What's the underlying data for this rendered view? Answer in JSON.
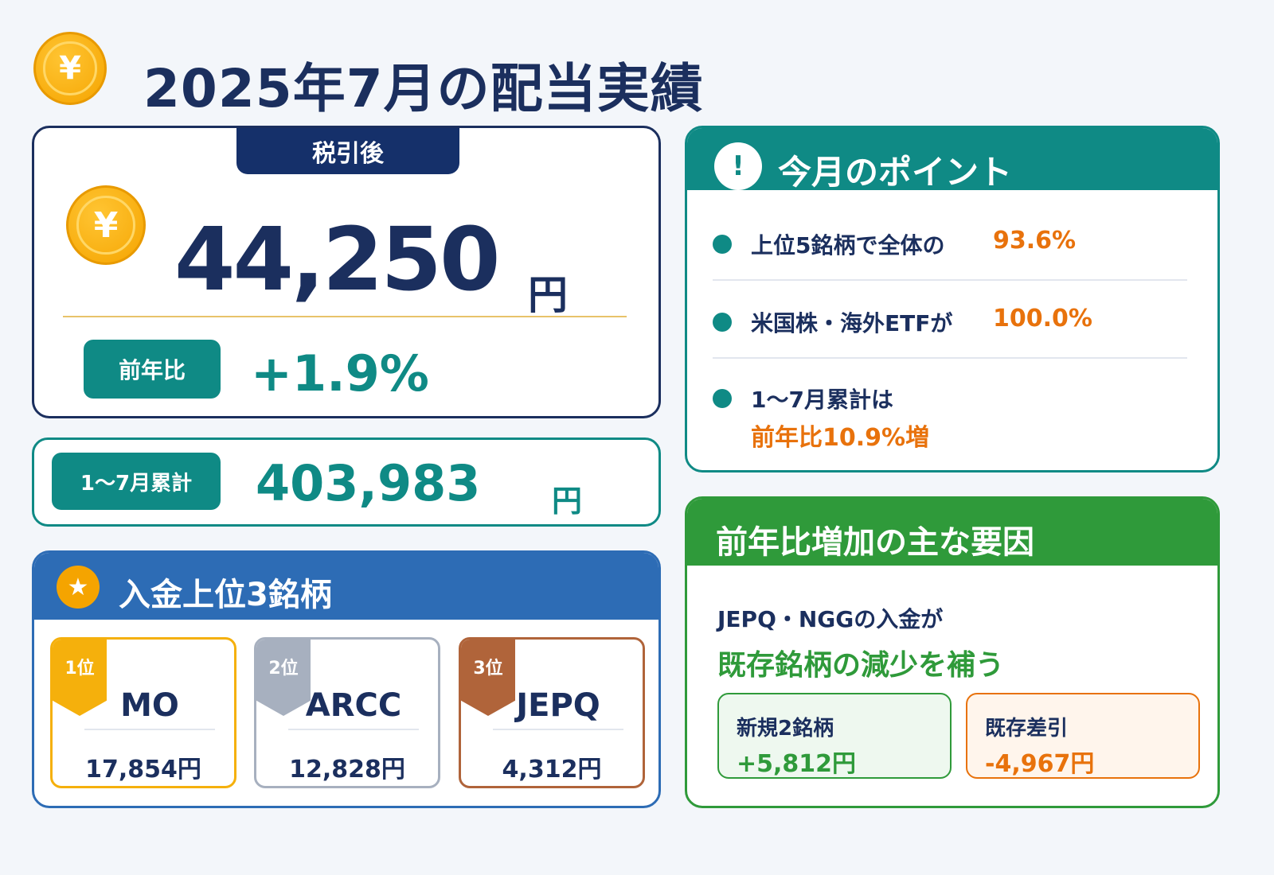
{
  "header": {
    "title": "2025年7月の配当実績",
    "coin_symbol": "¥"
  },
  "total": {
    "badge": "税引後",
    "coin_symbol": "¥",
    "amount": "44,250",
    "unit": "円",
    "yoy_label": "前年比",
    "yoy_value": "+1.9%"
  },
  "cumulative": {
    "label": "1〜7月累計",
    "amount": "403,983",
    "unit": "円"
  },
  "top3": {
    "title": "入金上位3銘柄",
    "star_symbol": "★",
    "items": [
      {
        "rank": "1位",
        "ticker": "MO",
        "amount": "17,854円",
        "color": "#f5b00c"
      },
      {
        "rank": "2位",
        "ticker": "ARCC",
        "amount": "12,828円",
        "color": "#a7b0bf"
      },
      {
        "rank": "3位",
        "ticker": "JEPQ",
        "amount": "4,312円",
        "color": "#b0643a"
      }
    ]
  },
  "points": {
    "title": "今月のポイント",
    "alert_symbol": "!",
    "items": [
      {
        "text": "上位5銘柄で全体の",
        "accent": "93.6%"
      },
      {
        "text": "米国株・海外ETFが",
        "accent": "100.0%"
      },
      {
        "text": "1〜7月累計は",
        "accent": "前年比10.9%増"
      }
    ]
  },
  "factors": {
    "title": "前年比増加の主な要因",
    "line1": "JEPQ・NGGの入金が",
    "line2": "既存銘柄の減少を補う",
    "new_label": "新規2銘柄",
    "new_value": "+5,812円",
    "existing_label": "既存差引",
    "existing_value": "-4,967円"
  },
  "colors": {
    "navy": "#1b2f5e",
    "teal": "#0f8a85",
    "blue": "#2d6cb5",
    "green": "#2f9a3a",
    "orange": "#e8720c",
    "gold": "#f5a400"
  },
  "icons": [
    "yen-coin-icon",
    "star-icon",
    "alert-icon"
  ]
}
